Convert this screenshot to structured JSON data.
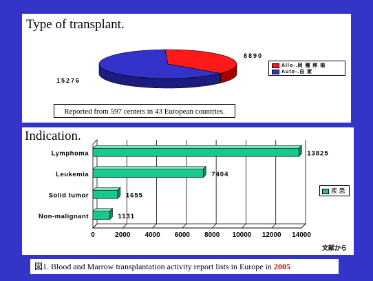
{
  "panels": {
    "transplant": {
      "title": "Type of transplant."
    },
    "indication": {
      "title": "Indication."
    }
  },
  "note": "Reported from 597 centers in 43 European countries.",
  "caption": {
    "prefix": "図1. Blood and Marrow transplantation activity report lists in Europe in ",
    "year": "2005"
  },
  "source_label": "文献から",
  "colors": {
    "allo": "#ff1a1a",
    "auto": "#3333cc",
    "bar": "#19c88c",
    "background": "#3434c8"
  },
  "chart_data": [
    {
      "type": "pie",
      "title": "Type of transplant.",
      "labels": [
        "Allo-.同 種 移 植",
        "Auto-.自 家"
      ],
      "values": [
        8890,
        15276
      ],
      "value_labels": [
        "8890",
        "15276"
      ],
      "legend": "right"
    },
    {
      "type": "bar",
      "orientation": "horizontal",
      "title": "Indication.",
      "categories": [
        "Lymphoma",
        "Leukemia",
        "Solid tumor",
        "Non-malignant"
      ],
      "values": [
        13825,
        7404,
        1655,
        1131
      ],
      "value_labels": [
        "13825",
        "7404",
        "1655",
        "1131"
      ],
      "series": [
        {
          "name": "疾 患",
          "values": [
            13825,
            7404,
            1655,
            1131
          ]
        }
      ],
      "xlim": [
        0,
        14000
      ],
      "xticks": [
        "0",
        "2000",
        "4000",
        "6000",
        "8000",
        "10000",
        "12000",
        "14000"
      ],
      "grid": true,
      "legend": "right"
    }
  ]
}
